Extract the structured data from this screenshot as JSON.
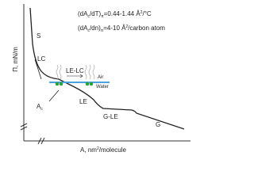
{
  "axes": {
    "y_label": {
      "parts": [
        "Π, mN/m"
      ]
    },
    "x_label": {
      "parts": [
        "A, nm",
        "2",
        "/molecule"
      ]
    }
  },
  "equations": [
    {
      "parts": [
        "(dA",
        "c",
        "/dT)",
        "π",
        "=0.44-1.44 Å",
        "2",
        "/°C"
      ]
    },
    {
      "parts": [
        "(dA",
        "c",
        "/dn)",
        "π",
        "=4-10 Å",
        "2",
        "/carbon atom"
      ]
    }
  ],
  "regions": {
    "s": "S",
    "lc": "LC",
    "le": "LE",
    "g_le": "G-LE",
    "g": "G"
  },
  "inset": {
    "transition": "LE-LC",
    "air": "Air",
    "water": "Water"
  },
  "ac_label": {
    "main": "A",
    "sub": "c"
  }
}
